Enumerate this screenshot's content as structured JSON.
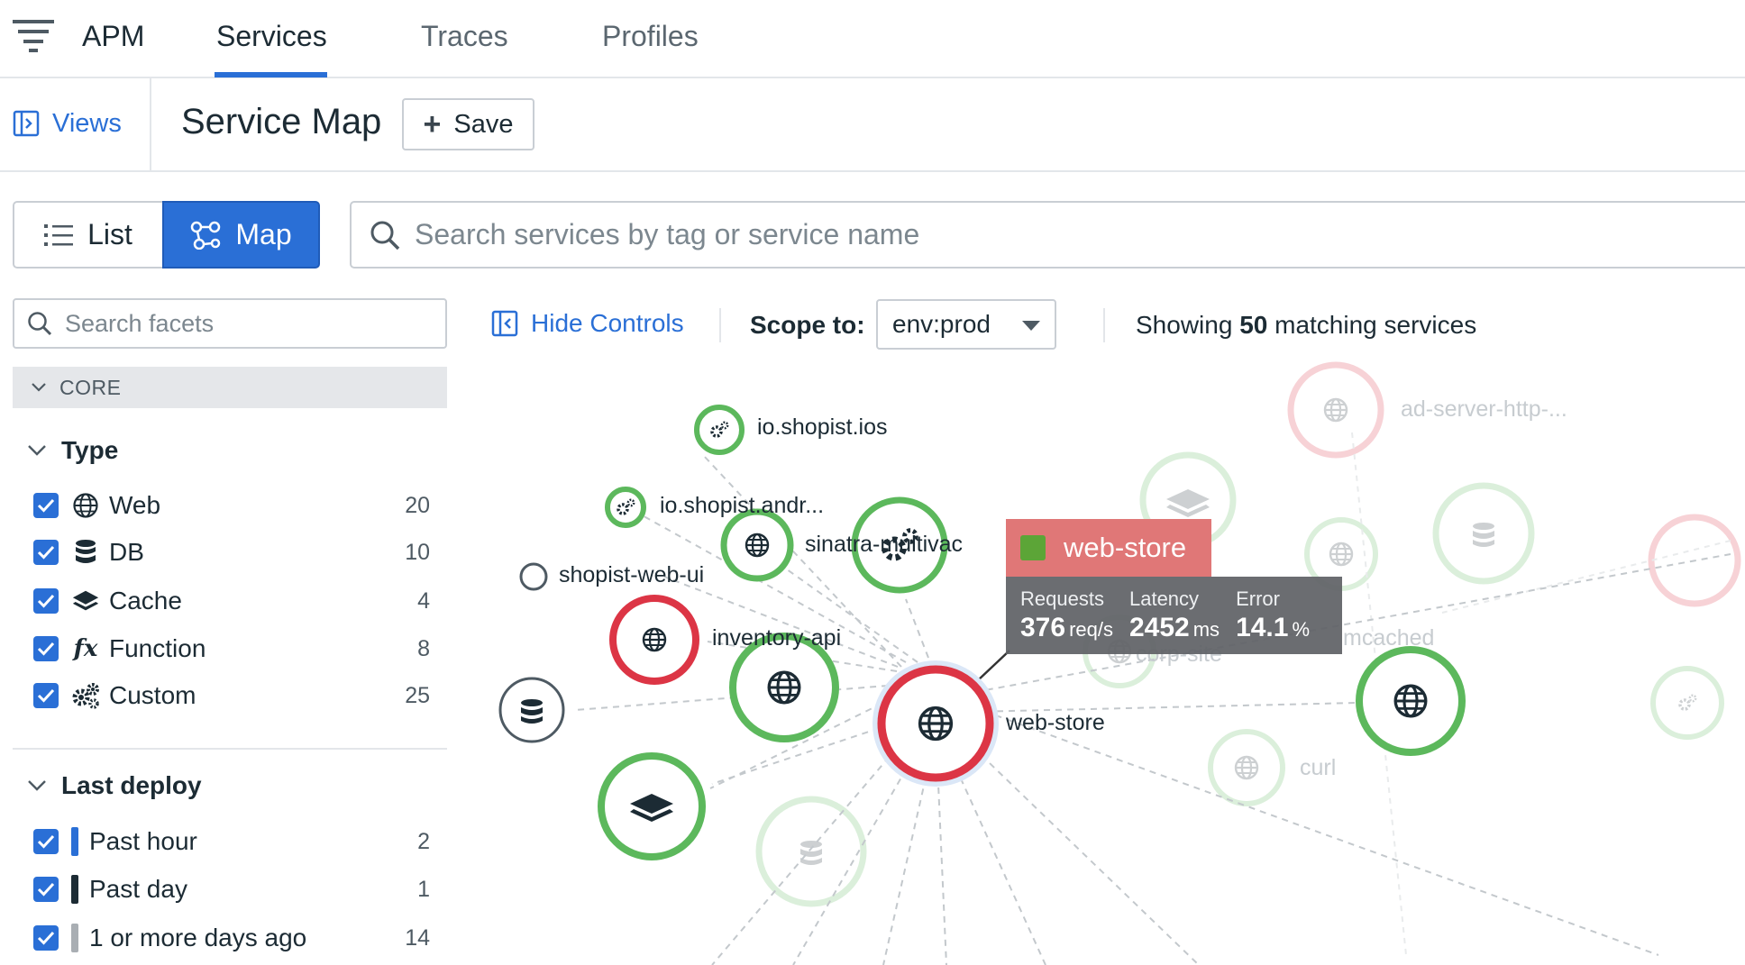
{
  "topnav": {
    "brand": "APM",
    "tabs": [
      "Services",
      "Traces",
      "Profiles"
    ],
    "active_tab": "Services"
  },
  "subbar": {
    "views_label": "Views",
    "page_title": "Service Map",
    "save_label": "Save"
  },
  "view_toggle": {
    "list_label": "List",
    "map_label": "Map",
    "active": "Map"
  },
  "search": {
    "placeholder": "Search services by tag or service name",
    "value": ""
  },
  "facets": {
    "search_placeholder": "Search facets",
    "section": "CORE",
    "type": {
      "title": "Type",
      "items": [
        {
          "label": "Web",
          "count": "20",
          "icon": "globe-icon",
          "checked": true
        },
        {
          "label": "DB",
          "count": "10",
          "icon": "database-icon",
          "checked": true
        },
        {
          "label": "Cache",
          "count": "4",
          "icon": "layers-icon",
          "checked": true
        },
        {
          "label": "Function",
          "count": "8",
          "icon": "function-icon",
          "checked": true
        },
        {
          "label": "Custom",
          "count": "25",
          "icon": "gears-icon",
          "checked": true
        }
      ]
    },
    "last_deploy": {
      "title": "Last deploy",
      "items": [
        {
          "label": "Past hour",
          "count": "2",
          "color": "#2a6fd6",
          "checked": true
        },
        {
          "label": "Past day",
          "count": "1",
          "color": "#1c2b34",
          "checked": true
        },
        {
          "label": "1 or more days ago",
          "count": "14",
          "color": "#a9aeb3",
          "checked": true
        }
      ]
    }
  },
  "controls": {
    "hide_controls_label": "Hide Controls",
    "scope_label": "Scope to:",
    "scope_value": "env:prod",
    "showing_prefix": "Showing",
    "showing_count": "50",
    "showing_suffix": "matching services"
  },
  "map": {
    "labels": {
      "ios": "io.shopist.ios",
      "android": "io.shopist.andr...",
      "sinatra": "sinatra-multivac",
      "webui": "shopist-web-ui",
      "inventory": "inventory-api",
      "webstore": "web-store",
      "adserver": "ad-server-http-...",
      "memcached": "mcached",
      "corpsite": "corp-site",
      "curl": "curl"
    },
    "colors": {
      "healthy": "#5cb85c",
      "error": "#dc3545",
      "neutral": "#4e5a63"
    }
  },
  "tooltip": {
    "service": "web-store",
    "requests_label": "Requests",
    "requests_value": "376",
    "requests_unit": "req/s",
    "latency_label": "Latency",
    "latency_value": "2452",
    "latency_unit": "ms",
    "error_label": "Error",
    "error_value": "14.1",
    "error_unit": "%"
  }
}
